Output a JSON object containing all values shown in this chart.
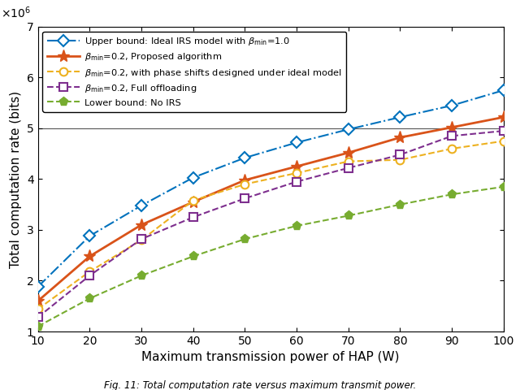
{
  "x": [
    10,
    20,
    30,
    40,
    50,
    60,
    70,
    80,
    90,
    100
  ],
  "upper_bound": [
    1880000.0,
    2880000.0,
    3480000.0,
    4030000.0,
    4420000.0,
    4720000.0,
    4980000.0,
    5220000.0,
    5450000.0,
    5750000.0
  ],
  "proposed": [
    1600000.0,
    2480000.0,
    3100000.0,
    3550000.0,
    3980000.0,
    4250000.0,
    4520000.0,
    4820000.0,
    5020000.0,
    5220000.0
  ],
  "full_offload": [
    1280000.0,
    2100000.0,
    2820000.0,
    3250000.0,
    3620000.0,
    3950000.0,
    4220000.0,
    4480000.0,
    4850000.0,
    4950000.0
  ],
  "ideal_phase": [
    1440000.0,
    2180000.0,
    2800000.0,
    3580000.0,
    3900000.0,
    4120000.0,
    4350000.0,
    4380000.0,
    4600000.0,
    4750000.0
  ],
  "no_irs": [
    1100000.0,
    1650000.0,
    2100000.0,
    2480000.0,
    2820000.0,
    3080000.0,
    3280000.0,
    3500000.0,
    3700000.0,
    3850000.0
  ],
  "ylim": [
    1000000.0,
    7000000.0
  ],
  "xlim": [
    10,
    100
  ],
  "xlabel": "Maximum transmission power of HAP (W)",
  "ylabel": "Total computation rate (bits)",
  "yticks": [
    1000000.0,
    2000000.0,
    3000000.0,
    4000000.0,
    5000000.0,
    6000000.0,
    7000000.0
  ],
  "xticks": [
    10,
    20,
    30,
    40,
    50,
    60,
    70,
    80,
    90,
    100
  ],
  "color_upper": "#0072BD",
  "color_proposed": "#D95319",
  "color_ideal_phase": "#EDB120",
  "color_full_offload": "#7E2F8E",
  "color_no_irs": "#77AC30",
  "label_upper": "Upper bound: Ideal IRS model with $\\beta_{\\mathrm{min}}$=1.0",
  "label_proposed": "$\\beta_{\\mathrm{min}}$=0.2, Proposed algorithm",
  "label_ideal_phase": "$\\beta_{\\mathrm{min}}$=0.2, with phase shifts designed under ideal model",
  "label_full_offload": "$\\beta_{\\mathrm{min}}$=0.2, Full offloading",
  "label_no_irs": "Lower bound: No IRS",
  "caption": "Fig. 11: Total computation rate versus maximum transmit power."
}
